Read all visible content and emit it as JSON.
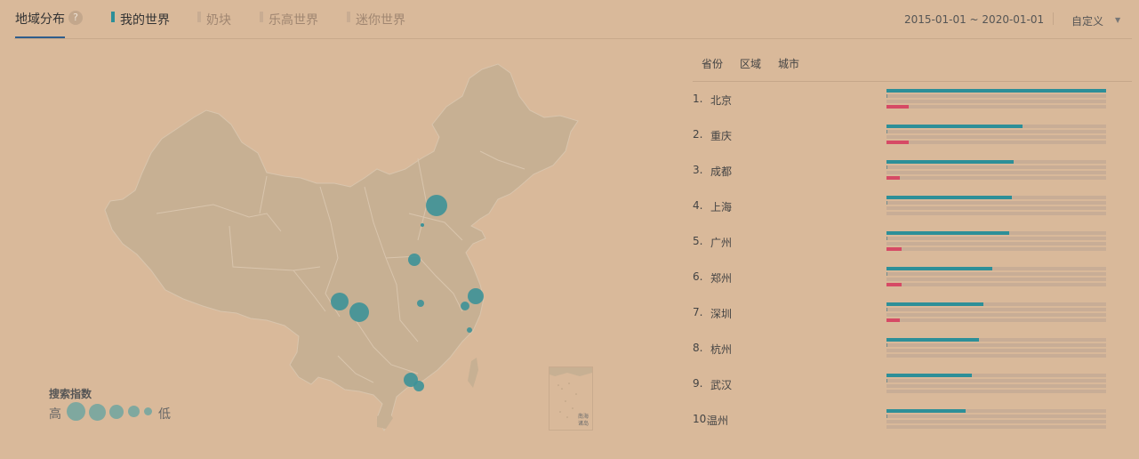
{
  "header": {
    "main_tab": "地域分布",
    "help_icon": "?",
    "word_tabs": [
      {
        "label": "我的世界",
        "active": true
      },
      {
        "label": "奶块",
        "active": false
      },
      {
        "label": "乐高世界",
        "active": false
      },
      {
        "label": "迷你世界",
        "active": false
      }
    ],
    "date_range": "2015-01-01 ~ 2020-01-01",
    "date_mode": "自定义"
  },
  "legend": {
    "title": "搜索指数",
    "high": "高",
    "low": "低"
  },
  "inset": {
    "label": "南海诸岛"
  },
  "panel": {
    "subtabs": [
      "省份",
      "区域",
      "城市"
    ],
    "series_colors": [
      "#2d8f98",
      "#6f8a8c",
      "#c8ad96",
      "#d64a65"
    ],
    "ranking": [
      {
        "rank": "1.",
        "city": "北京",
        "bars": [
          1.0,
          0.004,
          0.0,
          0.1
        ]
      },
      {
        "rank": "2.",
        "city": "重庆",
        "bars": [
          0.62,
          0.004,
          0.0,
          0.1
        ]
      },
      {
        "rank": "3.",
        "city": "成都",
        "bars": [
          0.58,
          0.004,
          0.0,
          0.06
        ]
      },
      {
        "rank": "4.",
        "city": "上海",
        "bars": [
          0.57,
          0.004,
          0.0,
          0.0
        ]
      },
      {
        "rank": "5.",
        "city": "广州",
        "bars": [
          0.56,
          0.004,
          0.0,
          0.07
        ]
      },
      {
        "rank": "6.",
        "city": "郑州",
        "bars": [
          0.48,
          0.004,
          0.0,
          0.07
        ]
      },
      {
        "rank": "7.",
        "city": "深圳",
        "bars": [
          0.44,
          0.004,
          0.0,
          0.06
        ]
      },
      {
        "rank": "8.",
        "city": "杭州",
        "bars": [
          0.42,
          0.004,
          0.0,
          0.0
        ]
      },
      {
        "rank": "9.",
        "city": "武汉",
        "bars": [
          0.39,
          0.004,
          0.0,
          0.0
        ]
      },
      {
        "rank": "10.",
        "city": "温州",
        "bars": [
          0.36,
          0.004,
          0.0,
          0.0
        ]
      }
    ]
  }
}
